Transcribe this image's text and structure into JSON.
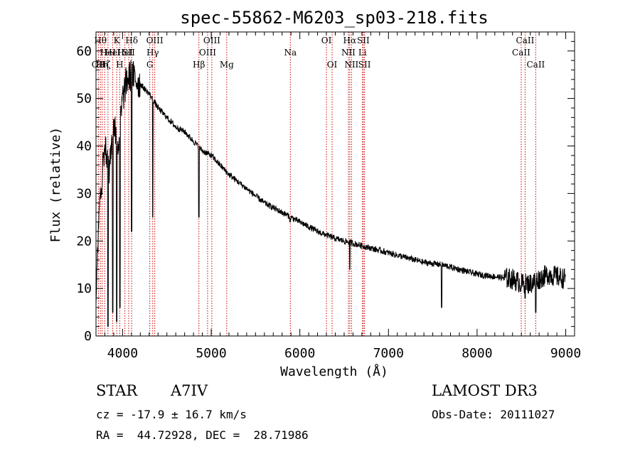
{
  "chart_data": {
    "type": "line",
    "title": "spec-55862-M6203_sp03-218.fits",
    "xlabel": "Wavelength (Å)",
    "ylabel": "Flux (relative)",
    "xlim": [
      3700,
      9100
    ],
    "ylim": [
      0,
      64
    ],
    "xticks": [
      4000,
      5000,
      6000,
      7000,
      8000,
      9000
    ],
    "yticks": [
      0,
      10,
      20,
      30,
      40,
      50,
      60
    ],
    "spectrum_anchors": {
      "x": [
        3700,
        3750,
        3800,
        3850,
        3900,
        3950,
        4000,
        4050,
        4100,
        4150,
        4200,
        4300,
        4400,
        4500,
        4600,
        4700,
        4800,
        4900,
        5000,
        5100,
        5200,
        5400,
        5600,
        5800,
        6000,
        6200,
        6400,
        6600,
        6800,
        7000,
        7200,
        7400,
        7600,
        7800,
        8000,
        8200,
        8400,
        8500,
        8600,
        8700,
        8800,
        9000
      ],
      "y": [
        10,
        30,
        40,
        35,
        45,
        40,
        50,
        54,
        55,
        54,
        53,
        51,
        48,
        46,
        44,
        43,
        41,
        39,
        38,
        36,
        34,
        31,
        28,
        26,
        24,
        22,
        20.5,
        19.5,
        18.5,
        17.5,
        16.5,
        15.5,
        15,
        14,
        13,
        12.5,
        12,
        11,
        11,
        12,
        13,
        12
      ]
    },
    "absorption_features": {
      "x": [
        3835,
        3889,
        3934,
        3970,
        4102,
        4340,
        4861,
        5890,
        6563,
        7600,
        8542,
        8662
      ],
      "y": [
        2,
        5,
        3,
        6,
        22,
        25,
        25,
        24,
        14,
        6,
        8,
        5
      ]
    },
    "line_markers": [
      {
        "x": 3727,
        "label": "OII",
        "row": 3
      },
      {
        "x": 3750,
        "label": "Hθ",
        "row": 1
      },
      {
        "x": 3770,
        "label": "Hη",
        "row": 3
      },
      {
        "x": 3798,
        "label": "Hζ",
        "row": 3
      },
      {
        "x": 3835,
        "label": "HeI",
        "row": 2
      },
      {
        "x": 3889,
        "label": "HeI",
        "row": 2
      },
      {
        "x": 3934,
        "label": "K",
        "row": 1
      },
      {
        "x": 3968,
        "label": "H",
        "row": 3
      },
      {
        "x": 4026,
        "label": "HeI",
        "row": 2
      },
      {
        "x": 4069,
        "label": "SII",
        "row": 2
      },
      {
        "x": 4102,
        "label": "Hδ",
        "row": 1
      },
      {
        "x": 4307,
        "label": "G",
        "row": 3
      },
      {
        "x": 4340,
        "label": "Hγ",
        "row": 2
      },
      {
        "x": 4363,
        "label": "OIII",
        "row": 1
      },
      {
        "x": 4861,
        "label": "Hβ",
        "row": 3
      },
      {
        "x": 4959,
        "label": "OIII",
        "row": 2
      },
      {
        "x": 5007,
        "label": "OIII",
        "row": 1
      },
      {
        "x": 5175,
        "label": "Mg",
        "row": 3
      },
      {
        "x": 5893,
        "label": "Na",
        "row": 2
      },
      {
        "x": 6300,
        "label": "OI",
        "row": 1
      },
      {
        "x": 6364,
        "label": "OI",
        "row": 3
      },
      {
        "x": 6548,
        "label": "NII",
        "row": 2
      },
      {
        "x": 6563,
        "label": "Hα",
        "row": 1
      },
      {
        "x": 6583,
        "label": "NII",
        "row": 3
      },
      {
        "x": 6707,
        "label": "Li",
        "row": 2
      },
      {
        "x": 6716,
        "label": "SII",
        "row": 1
      },
      {
        "x": 6730,
        "label": "SII",
        "row": 3
      },
      {
        "x": 8498,
        "label": "CaII",
        "row": 2
      },
      {
        "x": 8542,
        "label": "CaII",
        "row": 1
      },
      {
        "x": 8662,
        "label": "CaII",
        "row": 3
      }
    ],
    "colors": {
      "spectrum": "#000000",
      "marker": "#cc0000",
      "axes": "#000000"
    }
  },
  "info": {
    "class": "STAR",
    "subclass": "A7IV",
    "survey": "LAMOST DR3",
    "cz": "cz = -17.9 ± 16.7 km/s",
    "obs_date": "Obs-Date: 20111027",
    "radec": "RA =  44.72928, DEC =  28.71986"
  }
}
